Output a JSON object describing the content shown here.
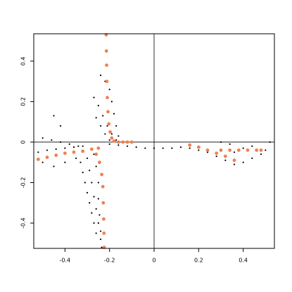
{
  "chart_data": {
    "type": "scatter",
    "xlim": [
      -0.54,
      0.54
    ],
    "ylim": [
      -0.525,
      0.535
    ],
    "xticks": [
      -0.4,
      -0.2,
      0.0,
      0.2,
      0.4
    ],
    "yticks": [
      -0.4,
      -0.2,
      0.0,
      0.2,
      0.4
    ],
    "hlines": [
      0
    ],
    "vlines": [
      0
    ],
    "series": [
      {
        "color": "#000000",
        "size": 1.1,
        "x": [
          -0.24,
          -0.22,
          -0.2,
          -0.19,
          -0.18,
          -0.17,
          -0.16,
          -0.27,
          -0.25,
          -0.23,
          -0.21,
          -0.19,
          -0.17,
          -0.26,
          -0.24,
          -0.22,
          -0.2,
          -0.2,
          -0.16,
          -0.12,
          -0.08,
          -0.04,
          0.0,
          0.04,
          0.08,
          0.12,
          -0.52,
          -0.48,
          -0.44,
          -0.4,
          -0.36,
          -0.32,
          -0.5,
          -0.46,
          -0.42,
          -0.38,
          -0.34,
          -0.45,
          -0.42,
          -0.5,
          -0.45,
          -0.4,
          -0.35,
          -0.33,
          -0.32,
          -0.31,
          -0.3,
          -0.29,
          -0.28,
          -0.27,
          -0.26,
          -0.3,
          -0.29,
          -0.28,
          -0.27,
          -0.26,
          -0.25,
          -0.24,
          -0.27,
          -0.26,
          -0.25,
          -0.25,
          -0.245,
          -0.24,
          -0.235,
          0.16,
          0.2,
          0.24,
          0.28,
          0.32,
          0.36,
          0.4,
          0.44,
          0.48,
          0.5,
          0.52,
          0.44,
          0.4,
          0.36,
          0.3,
          0.34
        ],
        "values": [
          0.33,
          0.3,
          0.26,
          0.2,
          0.14,
          0.08,
          0.03,
          0.22,
          0.18,
          0.13,
          0.08,
          0.04,
          0.01,
          0.12,
          0.08,
          0.04,
          0.01,
          -0.01,
          -0.015,
          -0.02,
          -0.025,
          -0.03,
          -0.03,
          -0.03,
          -0.03,
          -0.025,
          -0.05,
          -0.04,
          -0.035,
          -0.03,
          -0.025,
          -0.02,
          0.02,
          0.01,
          0.0,
          -0.01,
          -0.02,
          0.13,
          0.08,
          -0.1,
          -0.12,
          -0.1,
          -0.08,
          -0.1,
          -0.15,
          -0.2,
          -0.25,
          -0.3,
          -0.35,
          -0.4,
          -0.45,
          -0.08,
          -0.14,
          -0.2,
          -0.27,
          -0.33,
          -0.4,
          -0.48,
          -0.06,
          -0.12,
          -0.2,
          -0.28,
          -0.36,
          -0.44,
          -0.52,
          -0.03,
          -0.04,
          -0.05,
          -0.07,
          -0.09,
          -0.11,
          -0.1,
          -0.08,
          -0.06,
          -0.04,
          0.0,
          -0.02,
          -0.03,
          -0.05,
          0.0,
          -0.01
        ]
      },
      {
        "color": "#f08050",
        "size": 2.4,
        "x": [
          -0.215,
          -0.214,
          -0.213,
          -0.212,
          -0.21,
          -0.207,
          -0.203,
          -0.197,
          -0.19,
          -0.18,
          -0.16,
          -0.14,
          -0.12,
          -0.1,
          -0.52,
          -0.48,
          -0.44,
          -0.4,
          -0.36,
          -0.32,
          -0.28,
          -0.25,
          -0.26,
          -0.245,
          -0.235,
          -0.23,
          -0.228,
          -0.226,
          -0.225,
          -0.224,
          0.16,
          0.2,
          0.24,
          0.28,
          0.32,
          0.36,
          0.3,
          0.34,
          0.38,
          0.42,
          0.46,
          0.48
        ],
        "values": [
          0.53,
          0.45,
          0.38,
          0.3,
          0.22,
          0.15,
          0.09,
          0.05,
          0.02,
          0.005,
          0.0,
          0.0,
          0.0,
          0.0,
          -0.085,
          -0.075,
          -0.065,
          -0.055,
          -0.05,
          -0.045,
          -0.035,
          -0.03,
          -0.06,
          -0.1,
          -0.16,
          -0.22,
          -0.3,
          -0.38,
          -0.45,
          -0.52,
          -0.015,
          -0.025,
          -0.04,
          -0.055,
          -0.07,
          -0.09,
          -0.04,
          -0.04,
          -0.04,
          -0.04,
          -0.04,
          -0.04
        ]
      }
    ]
  }
}
